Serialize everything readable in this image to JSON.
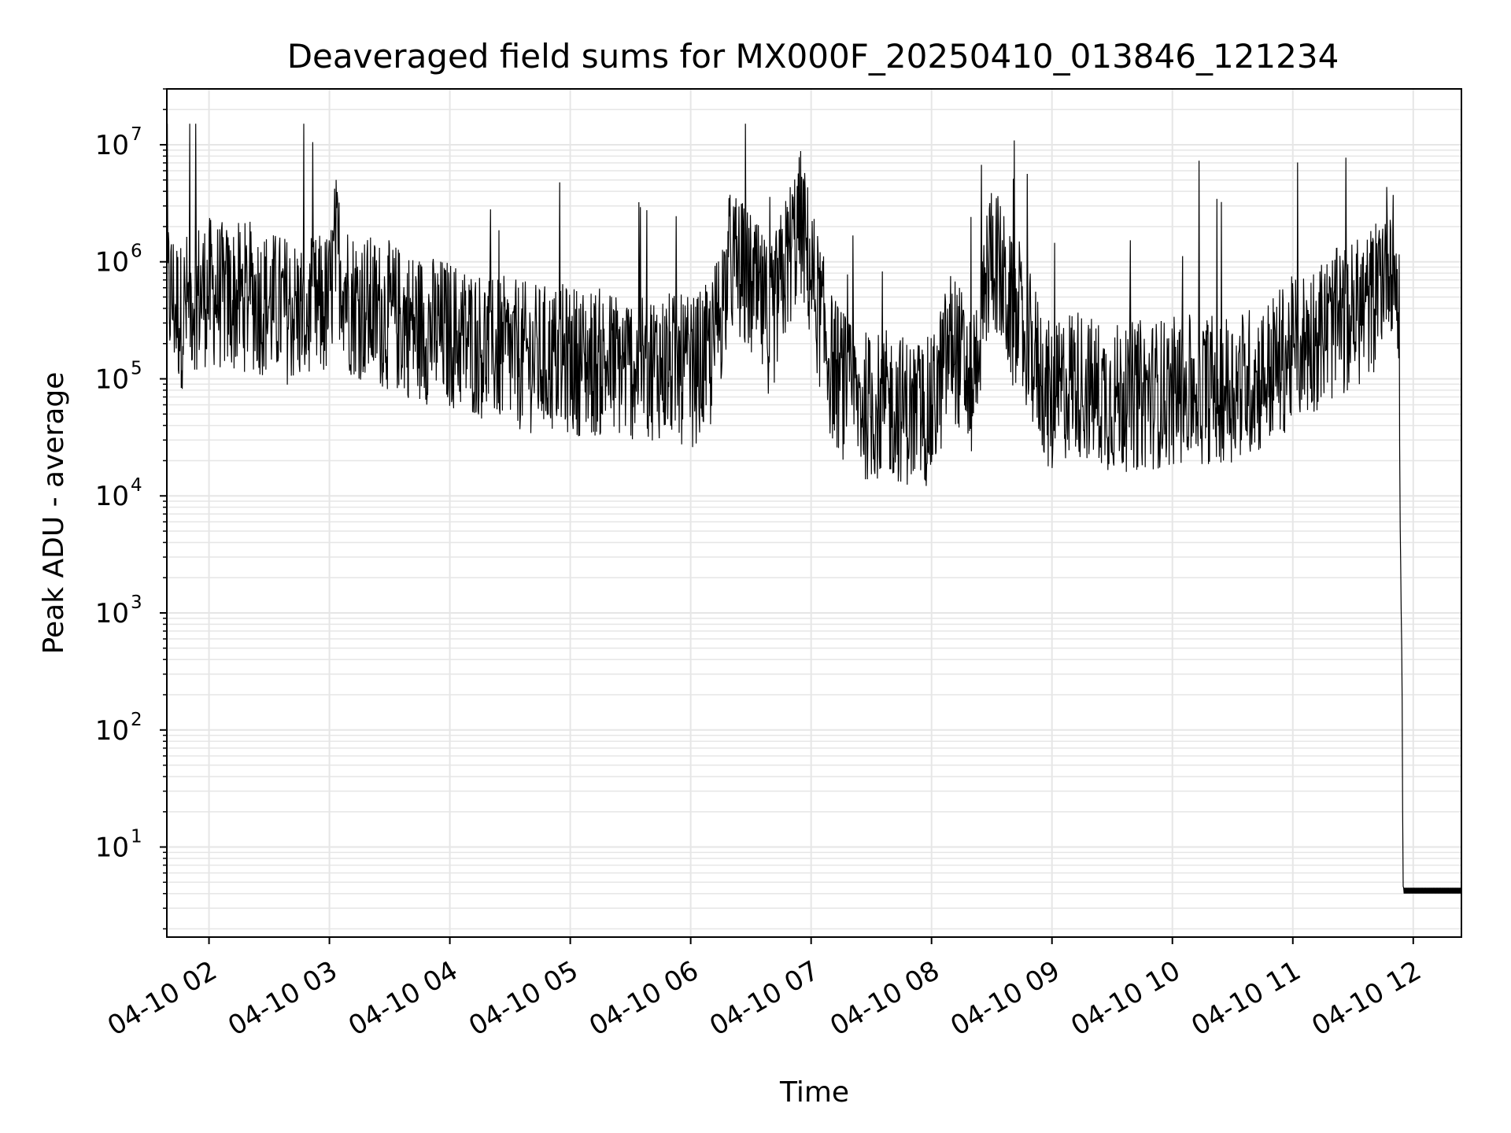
{
  "chart_data": {
    "type": "line",
    "title": "Deaveraged field sums for MX000F_20250410_013846_121234",
    "xlabel": "Time",
    "ylabel": "Peak ADU - average",
    "yscale": "log",
    "ylim": [
      1.7,
      30000000
    ],
    "xlim": [
      "2025-04-10 01:39",
      "2025-04-10 12:24"
    ],
    "grid": true,
    "line_color": "#000000",
    "grid_color": "#e6e6e6",
    "x_ticks": [
      "2025-04-10 02:00",
      "2025-04-10 03:00",
      "2025-04-10 04:00",
      "2025-04-10 05:00",
      "2025-04-10 06:00",
      "2025-04-10 07:00",
      "2025-04-10 08:00",
      "2025-04-10 09:00",
      "2025-04-10 10:00",
      "2025-04-10 11:00",
      "2025-04-10 12:00"
    ],
    "x_tick_labels": [
      "04-10 02",
      "04-10 03",
      "04-10 04",
      "04-10 05",
      "04-10 06",
      "04-10 07",
      "04-10 08",
      "04-10 09",
      "04-10 10",
      "04-10 11",
      "04-10 12"
    ],
    "y_ticks": [
      {
        "value": 10,
        "base": "10",
        "exp": "1"
      },
      {
        "value": 100,
        "base": "10",
        "exp": "2"
      },
      {
        "value": 1000,
        "base": "10",
        "exp": "3"
      },
      {
        "value": 10000,
        "base": "10",
        "exp": "4"
      },
      {
        "value": 100000,
        "base": "10",
        "exp": "5"
      },
      {
        "value": 1000000,
        "base": "10",
        "exp": "6"
      },
      {
        "value": 10000000,
        "base": "10",
        "exp": "7"
      }
    ],
    "series": [
      {
        "x": [
          "2025-04-10 01:39",
          "2025-04-10 01:46",
          "2025-04-10 01:52",
          "2025-04-10 02:00",
          "2025-04-10 02:10",
          "2025-04-10 02:20",
          "2025-04-10 02:30",
          "2025-04-10 02:40",
          "2025-04-10 02:50",
          "2025-04-10 03:00",
          "2025-04-10 03:03",
          "2025-04-10 03:10",
          "2025-04-10 03:20",
          "2025-04-10 03:30",
          "2025-04-10 03:45",
          "2025-04-10 04:00",
          "2025-04-10 04:15",
          "2025-04-10 04:30",
          "2025-04-10 04:45",
          "2025-04-10 05:00",
          "2025-04-10 05:15",
          "2025-04-10 05:30",
          "2025-04-10 05:45",
          "2025-04-10 06:00",
          "2025-04-10 06:10",
          "2025-04-10 06:20",
          "2025-04-10 06:30",
          "2025-04-10 06:40",
          "2025-04-10 06:50",
          "2025-04-10 06:55",
          "2025-04-10 07:00",
          "2025-04-10 07:10",
          "2025-04-10 07:20",
          "2025-04-10 07:30",
          "2025-04-10 07:40",
          "2025-04-10 07:50",
          "2025-04-10 08:00",
          "2025-04-10 08:10",
          "2025-04-10 08:20",
          "2025-04-10 08:30",
          "2025-04-10 08:40",
          "2025-04-10 08:50",
          "2025-04-10 09:00",
          "2025-04-10 09:10",
          "2025-04-10 09:20",
          "2025-04-10 09:30",
          "2025-04-10 09:45",
          "2025-04-10 10:00",
          "2025-04-10 10:15",
          "2025-04-10 10:30",
          "2025-04-10 10:45",
          "2025-04-10 11:00",
          "2025-04-10 11:15",
          "2025-04-10 11:30",
          "2025-04-10 11:40",
          "2025-04-10 11:46",
          "2025-04-10 11:48",
          "2025-04-10 11:51",
          "2025-04-10 11:53",
          "2025-04-10 11:55",
          "2025-04-10 12:00",
          "2025-04-10 12:24"
        ],
        "y": [
          700000,
          400000,
          600000,
          650000,
          550000,
          600000,
          500000,
          450000,
          420000,
          500000,
          1500000,
          550000,
          450000,
          400000,
          320000,
          280000,
          230000,
          190000,
          170000,
          170000,
          160000,
          150000,
          155000,
          130000,
          180000,
          1200000,
          700000,
          350000,
          1500000,
          2500000,
          900000,
          150000,
          80000,
          65000,
          70000,
          60000,
          60000,
          250000,
          100000,
          1600000,
          400000,
          200000,
          70000,
          120000,
          90000,
          80000,
          85000,
          90000,
          95000,
          100000,
          120000,
          200000,
          300000,
          400000,
          550000,
          1200000,
          1500000,
          1000000,
          300000,
          4,
          4,
          4
        ]
      }
    ]
  }
}
